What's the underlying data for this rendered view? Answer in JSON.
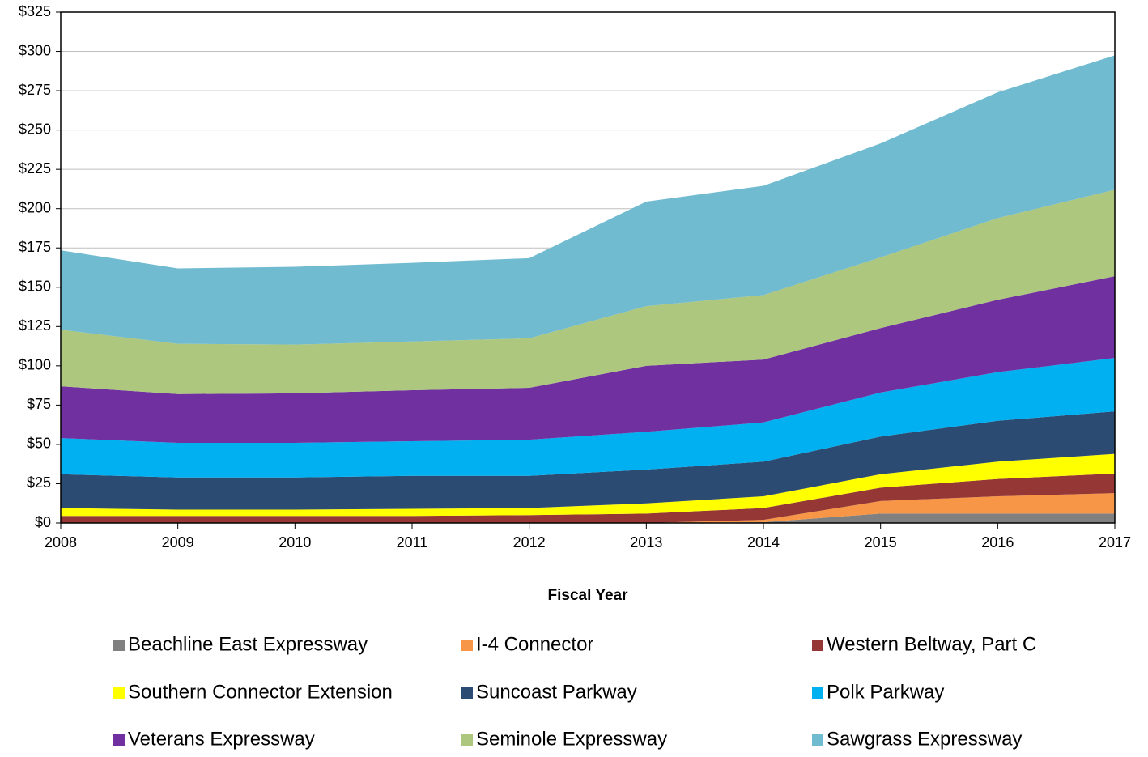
{
  "chart_data": {
    "type": "stacked_area",
    "x_label": "Fiscal Year",
    "x": [
      2008,
      2009,
      2010,
      2011,
      2012,
      2013,
      2014,
      2015,
      2016,
      2017
    ],
    "xlim": [
      2008,
      2017
    ],
    "xticks": [
      2008,
      2009,
      2010,
      2011,
      2012,
      2013,
      2014,
      2015,
      2016,
      2017
    ],
    "ylim": [
      0,
      325
    ],
    "yticks": [
      {
        "value": 0,
        "label": "$0"
      },
      {
        "value": 25,
        "label": "$25"
      },
      {
        "value": 50,
        "label": "$50"
      },
      {
        "value": 75,
        "label": "$75"
      },
      {
        "value": 100,
        "label": "$100"
      },
      {
        "value": 125,
        "label": "$125"
      },
      {
        "value": 150,
        "label": "$150"
      },
      {
        "value": 175,
        "label": "$175"
      },
      {
        "value": 200,
        "label": "$200"
      },
      {
        "value": 225,
        "label": "$225"
      },
      {
        "value": 250,
        "label": "$250"
      },
      {
        "value": 275,
        "label": "$275"
      },
      {
        "value": 300,
        "label": "$300"
      },
      {
        "value": 325,
        "label": "$325"
      }
    ],
    "grid": true,
    "legend": "bottom",
    "series": [
      {
        "name": "Beachline East Expressway",
        "color": "#808080",
        "values": [
          0,
          0,
          0,
          0,
          0,
          0,
          0.5,
          6,
          6,
          6
        ]
      },
      {
        "name": "I-4 Connector",
        "color": "#f79646",
        "values": [
          0,
          0,
          0,
          0,
          0,
          0,
          1.5,
          8,
          11,
          13
        ]
      },
      {
        "name": "Western Beltway, Part C",
        "color": "#953735",
        "values": [
          4.5,
          4.5,
          4.5,
          4.5,
          5,
          6,
          7.5,
          8.5,
          11,
          12.5
        ]
      },
      {
        "name": "Southern Connector Extension",
        "color": "#ffff00",
        "values": [
          5,
          4,
          4,
          4.5,
          4.5,
          6.5,
          7.5,
          8.5,
          11,
          12.5
        ]
      },
      {
        "name": "Suncoast Parkway",
        "color": "#2b4b73",
        "values": [
          21.5,
          20.5,
          20.5,
          21,
          20.5,
          21.5,
          22,
          24,
          26,
          27
        ]
      },
      {
        "name": "Polk Parkway",
        "color": "#00b0f0",
        "values": [
          23,
          22,
          22,
          22,
          23,
          24,
          25,
          28,
          31,
          34
        ]
      },
      {
        "name": "Veterans Expressway",
        "color": "#7030a0",
        "values": [
          33,
          31,
          31.5,
          32.5,
          33,
          42,
          40,
          41,
          46,
          52
        ]
      },
      {
        "name": "Seminole Expressway",
        "color": "#adc77e",
        "values": [
          36,
          32,
          31,
          31,
          31.5,
          38,
          41,
          45,
          52,
          55
        ]
      },
      {
        "name": "Sawgrass Expressway",
        "color": "#71bbd0",
        "values": [
          50.5,
          48,
          49.5,
          50,
          51,
          66.5,
          69.5,
          72.5,
          80,
          85.5
        ]
      }
    ]
  }
}
